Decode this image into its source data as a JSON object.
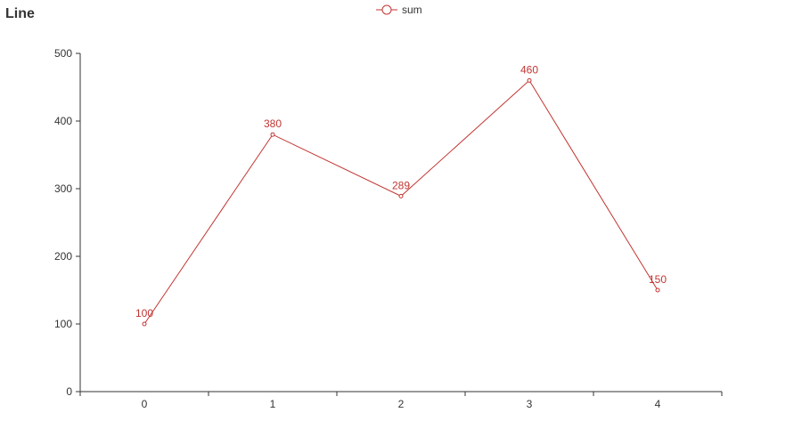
{
  "chart_data": {
    "type": "line",
    "title": "Line",
    "xlabel": "",
    "ylabel": "",
    "categories": [
      "0",
      "1",
      "2",
      "3",
      "4"
    ],
    "yticks": [
      0,
      100,
      200,
      300,
      400,
      500
    ],
    "ylim": [
      0,
      500
    ],
    "legend_position": "top-center",
    "grid": false,
    "series": [
      {
        "name": "sum",
        "color": "#c23531",
        "values": [
          100,
          380,
          289,
          460,
          150
        ]
      }
    ]
  }
}
